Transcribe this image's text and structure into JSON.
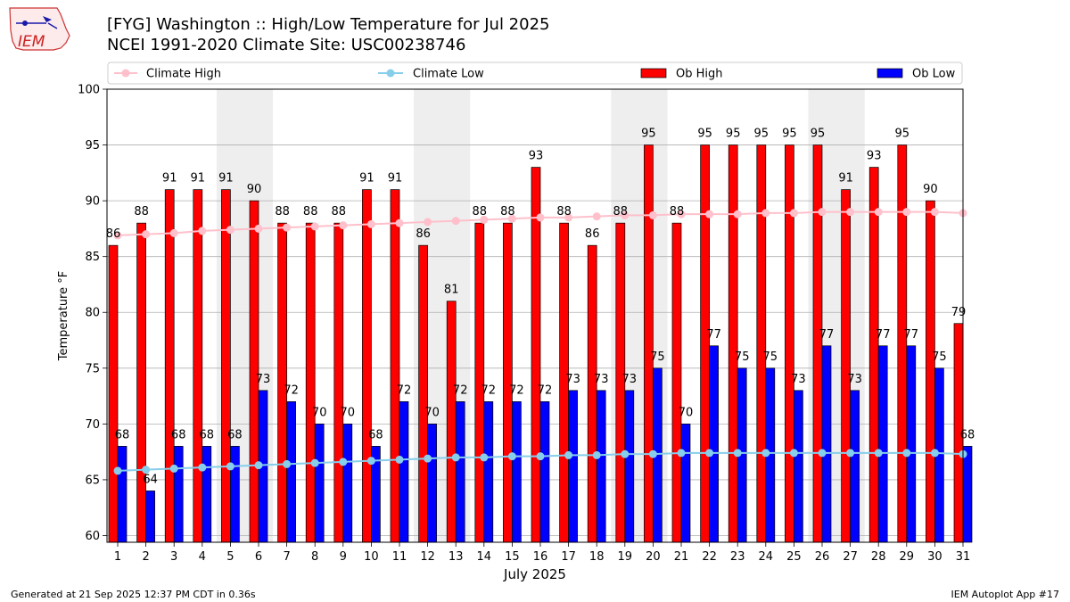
{
  "title": "[FYG] Washington :: High/Low Temperature for Jul 2025",
  "subtitle": "NCEI 1991-2020 Climate Site: USC00238746",
  "logo_text": "IEM",
  "footer_left": "Generated at 21 Sep 2025 12:37 PM CDT in 0.36s",
  "footer_right": "IEM Autoplot App #17",
  "chart_data": {
    "type": "bar",
    "xlabel": "July 2025",
    "ylabel": "Temperature °F",
    "ylim": [
      59.4,
      100
    ],
    "yticks": [
      60,
      65,
      70,
      75,
      80,
      85,
      90,
      95,
      100
    ],
    "grid": true,
    "legend_position": "top",
    "colors": {
      "ob_high": "#ff0000",
      "ob_low": "#0000ff",
      "climate_high": "#ffc0cb",
      "climate_low": "#87ceeb",
      "weekend_shade": "#eeeeee"
    },
    "categories": [
      "1",
      "2",
      "3",
      "4",
      "5",
      "6",
      "7",
      "8",
      "9",
      "10",
      "11",
      "12",
      "13",
      "14",
      "15",
      "16",
      "17",
      "18",
      "19",
      "20",
      "21",
      "22",
      "23",
      "24",
      "25",
      "26",
      "27",
      "28",
      "29",
      "30",
      "31"
    ],
    "shaded_days": [
      [
        5,
        6
      ],
      [
        12,
        13
      ],
      [
        19,
        20
      ],
      [
        26,
        27
      ]
    ],
    "series": [
      {
        "name": "Ob High",
        "kind": "bar",
        "values": [
          86,
          88,
          91,
          91,
          91,
          90,
          88,
          88,
          88,
          91,
          91,
          86,
          81,
          88,
          88,
          93,
          88,
          86,
          88,
          95,
          88,
          95,
          95,
          95,
          95,
          95,
          91,
          93,
          95,
          90,
          79
        ]
      },
      {
        "name": "Ob Low",
        "kind": "bar",
        "values": [
          68,
          64,
          68,
          68,
          68,
          73,
          72,
          70,
          70,
          68,
          72,
          70,
          72,
          72,
          72,
          72,
          73,
          73,
          73,
          75,
          70,
          77,
          75,
          75,
          73,
          77,
          73,
          77,
          77,
          75,
          68
        ]
      },
      {
        "name": "Climate High",
        "kind": "line",
        "values": [
          86.9,
          87.0,
          87.1,
          87.3,
          87.4,
          87.5,
          87.6,
          87.7,
          87.8,
          87.9,
          88.0,
          88.1,
          88.2,
          88.3,
          88.4,
          88.5,
          88.5,
          88.6,
          88.7,
          88.7,
          88.8,
          88.8,
          88.8,
          88.9,
          88.9,
          89.0,
          89.0,
          89.0,
          89.0,
          89.0,
          88.9
        ]
      },
      {
        "name": "Climate Low",
        "kind": "line",
        "values": [
          65.8,
          65.9,
          66.0,
          66.1,
          66.2,
          66.3,
          66.4,
          66.5,
          66.6,
          66.7,
          66.8,
          66.9,
          67.0,
          67.0,
          67.1,
          67.1,
          67.2,
          67.2,
          67.3,
          67.3,
          67.4,
          67.4,
          67.4,
          67.4,
          67.4,
          67.4,
          67.4,
          67.4,
          67.4,
          67.4,
          67.3
        ]
      }
    ]
  }
}
